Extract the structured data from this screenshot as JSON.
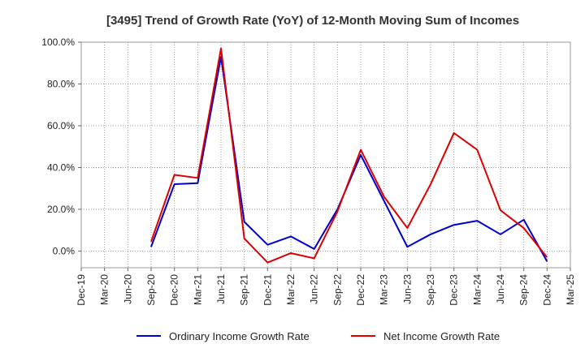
{
  "chart_data": {
    "type": "line",
    "title": "[3495]  Trend of Growth Rate (YoY) of 12-Month Moving Sum of Incomes",
    "x_ticks": [
      "Dec-19",
      "Mar-20",
      "Jun-20",
      "Sep-20",
      "Dec-20",
      "Mar-21",
      "Jun-21",
      "Sep-21",
      "Dec-21",
      "Mar-22",
      "Jun-22",
      "Sep-22",
      "Dec-22",
      "Mar-23",
      "Jun-23",
      "Sep-23",
      "Dec-23",
      "Mar-24",
      "Jun-24",
      "Sep-24",
      "Dec-24",
      "Mar-25"
    ],
    "y_ticks": [
      "100.0%",
      "80.0%",
      "60.0%",
      "40.0%",
      "20.0%",
      "0.0%"
    ],
    "y_tick_values": [
      100,
      80,
      60,
      40,
      20,
      0
    ],
    "ylim": [
      -8,
      100
    ],
    "grid": true,
    "legend_position": "bottom",
    "series": [
      {
        "name": "Ordinary Income Growth Rate",
        "color": "#0000cc",
        "points": [
          {
            "x": "Sep-20",
            "y": 2.0
          },
          {
            "x": "Dec-20",
            "y": 32.0
          },
          {
            "x": "Mar-21",
            "y": 32.5
          },
          {
            "x": "Jun-21",
            "y": 93.0
          },
          {
            "x": "Sep-21",
            "y": 14.0
          },
          {
            "x": "Dec-21",
            "y": 3.0
          },
          {
            "x": "Mar-22",
            "y": 7.0
          },
          {
            "x": "Jun-22",
            "y": 1.0
          },
          {
            "x": "Sep-22",
            "y": 20.0
          },
          {
            "x": "Dec-22",
            "y": 46.0
          },
          {
            "x": "Mar-23",
            "y": 24.0
          },
          {
            "x": "Jun-23",
            "y": 2.0
          },
          {
            "x": "Sep-23",
            "y": 8.0
          },
          {
            "x": "Dec-23",
            "y": 12.5
          },
          {
            "x": "Mar-24",
            "y": 14.5
          },
          {
            "x": "Jun-24",
            "y": 8.0
          },
          {
            "x": "Sep-24",
            "y": 15.0
          },
          {
            "x": "Dec-24",
            "y": -5.0
          }
        ]
      },
      {
        "name": "Net Income Growth Rate",
        "color": "#dd0000",
        "points": [
          {
            "x": "Sep-20",
            "y": 4.5
          },
          {
            "x": "Dec-20",
            "y": 36.5
          },
          {
            "x": "Mar-21",
            "y": 35.0
          },
          {
            "x": "Jun-21",
            "y": 97.0
          },
          {
            "x": "Sep-21",
            "y": 6.0
          },
          {
            "x": "Dec-21",
            "y": -5.5
          },
          {
            "x": "Mar-22",
            "y": -1.0
          },
          {
            "x": "Jun-22",
            "y": -3.5
          },
          {
            "x": "Sep-22",
            "y": 19.0
          },
          {
            "x": "Dec-22",
            "y": 48.5
          },
          {
            "x": "Mar-23",
            "y": 26.0
          },
          {
            "x": "Jun-23",
            "y": 11.0
          },
          {
            "x": "Sep-23",
            "y": 32.0
          },
          {
            "x": "Dec-23",
            "y": 56.5
          },
          {
            "x": "Mar-24",
            "y": 48.5
          },
          {
            "x": "Jun-24",
            "y": 19.5
          },
          {
            "x": "Sep-24",
            "y": 11.0
          },
          {
            "x": "Dec-24",
            "y": -3.0
          }
        ]
      }
    ]
  }
}
